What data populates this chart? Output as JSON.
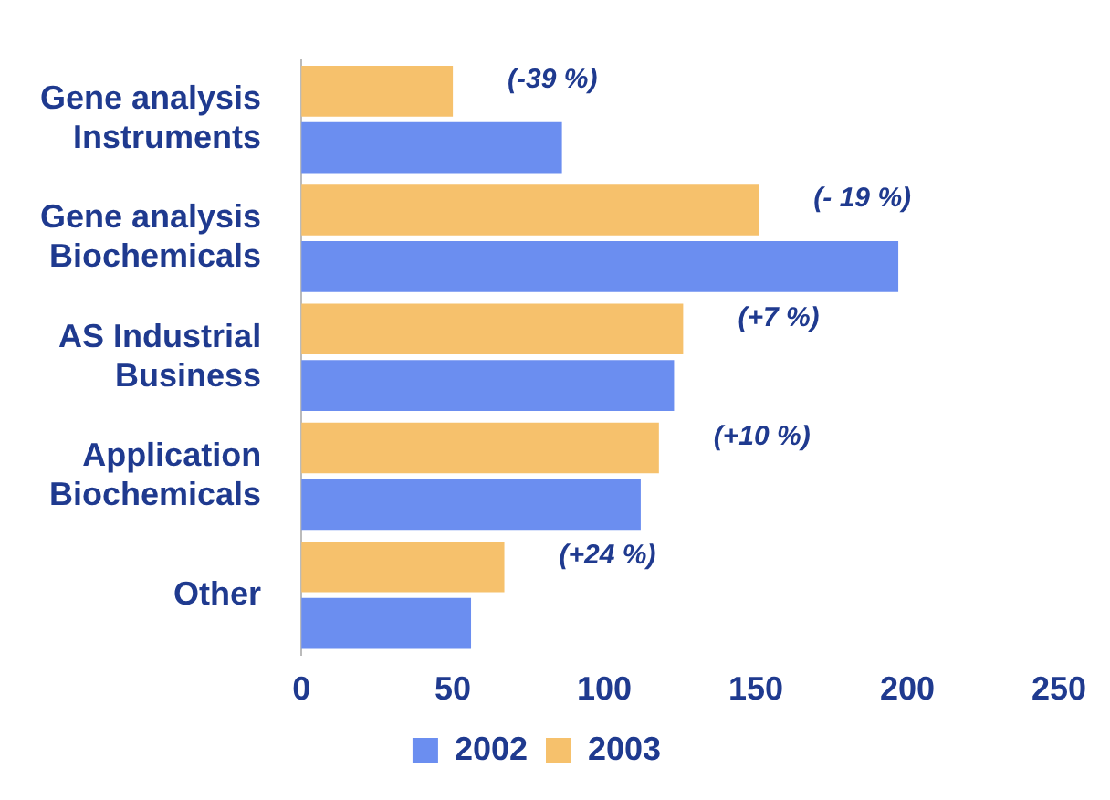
{
  "chart_data": {
    "type": "bar",
    "orientation": "horizontal",
    "categories": [
      "Gene analysis Instruments",
      "Gene analysis Biochemicals",
      "AS Industrial Business",
      "Application Biochemicals",
      "Other"
    ],
    "series": [
      {
        "name": "2002",
        "color": "#6b8ef0",
        "values": [
          86,
          197,
          123,
          112,
          56
        ]
      },
      {
        "name": "2003",
        "color": "#f6c16c",
        "values": [
          50,
          151,
          126,
          118,
          67
        ]
      }
    ],
    "xlim": [
      0,
      250
    ],
    "xticks": [
      0,
      50,
      100,
      150,
      200,
      250
    ],
    "grid": false,
    "legend": "bottom",
    "annotations": [
      "(-39 %)",
      "(- 19 %)",
      "(+7 %)",
      "(+10 %)",
      "(+24 %)"
    ]
  }
}
